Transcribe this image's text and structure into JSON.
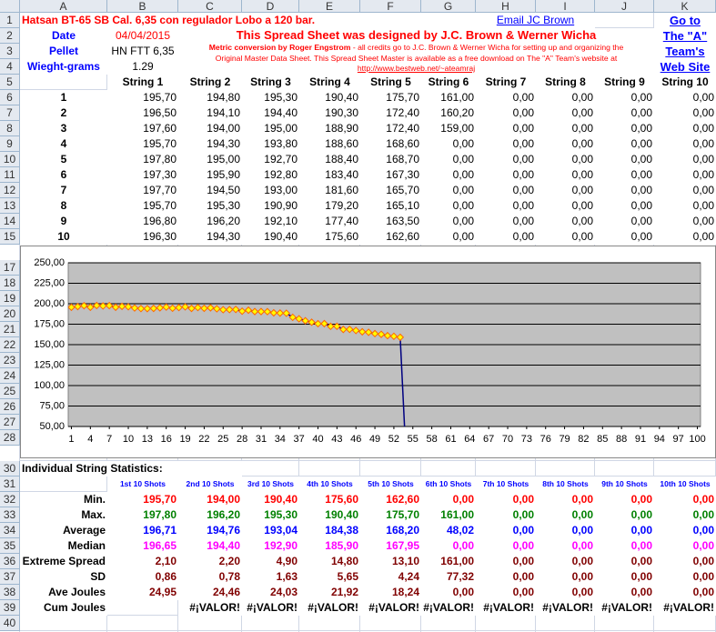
{
  "sheet": {
    "column_headers": [
      "A",
      "B",
      "C",
      "D",
      "E",
      "F",
      "G",
      "H",
      "I",
      "J",
      "K"
    ],
    "row_headers": [
      "1",
      "2",
      "3",
      "4",
      "5",
      "6",
      "7",
      "8",
      "9",
      "10",
      "11",
      "12",
      "13",
      "14",
      "15",
      "17",
      "18",
      "19",
      "20",
      "21",
      "22",
      "23",
      "24",
      "25",
      "26",
      "27",
      "28",
      "30",
      "31",
      "32",
      "33",
      "34",
      "35",
      "36",
      "37",
      "38",
      "39",
      "40"
    ],
    "title": "Hatsan BT-65 SB Cal. 6,35 con regulador Lobo a 120 bar.",
    "email_link": "Email JC Brown",
    "web_link": [
      "Go to",
      "The \"A\"",
      "Team's",
      "Web Site"
    ],
    "info": {
      "labels": [
        "Date",
        "Pellet",
        "Wieght-grams"
      ],
      "values": [
        "04/04/2015",
        "HN FTT 6,35",
        "1.29"
      ]
    },
    "banner": "This Spread Sheet was designed by J.C. Brown & Werner Wicha",
    "credits": {
      "author": "Metric conversion by Roger Engstrom",
      "lines": [
        " - all credits go to J.C. Brown & Werner Wicha for setting up and organizing the",
        "Original Master Data Sheet.  This Spread Sheet Master is available as a free download on The \"A\" Team's website at",
        "http://www.bestweb.net/~ateamraj"
      ]
    },
    "strings": {
      "headers": [
        "String 1",
        "String 2",
        "String 3",
        "String 4",
        "String 5",
        "String 6",
        "String 7",
        "String 8",
        "String 9",
        "String 10"
      ],
      "shots": [
        "1",
        "2",
        "3",
        "4",
        "5",
        "6",
        "7",
        "8",
        "9",
        "10"
      ],
      "values": [
        [
          "195,70",
          "194,80",
          "195,30",
          "190,40",
          "175,70",
          "161,00",
          "0,00",
          "0,00",
          "0,00",
          "0,00"
        ],
        [
          "196,50",
          "194,10",
          "194,40",
          "190,30",
          "172,40",
          "160,20",
          "0,00",
          "0,00",
          "0,00",
          "0,00"
        ],
        [
          "197,60",
          "194,00",
          "195,00",
          "188,90",
          "172,40",
          "159,00",
          "0,00",
          "0,00",
          "0,00",
          "0,00"
        ],
        [
          "195,70",
          "194,30",
          "193,80",
          "188,60",
          "168,60",
          "0,00",
          "0,00",
          "0,00",
          "0,00",
          "0,00"
        ],
        [
          "197,80",
          "195,00",
          "192,70",
          "188,40",
          "168,70",
          "0,00",
          "0,00",
          "0,00",
          "0,00",
          "0,00"
        ],
        [
          "197,30",
          "195,90",
          "192,80",
          "183,40",
          "167,30",
          "0,00",
          "0,00",
          "0,00",
          "0,00",
          "0,00"
        ],
        [
          "197,70",
          "194,50",
          "193,00",
          "181,60",
          "165,70",
          "0,00",
          "0,00",
          "0,00",
          "0,00",
          "0,00"
        ],
        [
          "195,70",
          "195,30",
          "190,90",
          "179,20",
          "165,10",
          "0,00",
          "0,00",
          "0,00",
          "0,00",
          "0,00"
        ],
        [
          "196,80",
          "196,20",
          "192,10",
          "177,40",
          "163,50",
          "0,00",
          "0,00",
          "0,00",
          "0,00",
          "0,00"
        ],
        [
          "196,30",
          "194,30",
          "190,40",
          "175,60",
          "162,60",
          "0,00",
          "0,00",
          "0,00",
          "0,00",
          "0,00"
        ]
      ]
    },
    "stats": {
      "title": "Individual String Statistics:",
      "headers": [
        "1st 10 Shots",
        "2nd 10 Shots",
        "3rd 10 Shots",
        "4th 10 Shots",
        "5th 10 Shots",
        "6th 10 Shots",
        "7th 10 Shots",
        "8th 10 Shots",
        "9th 10 Shots",
        "10th 10 Shots"
      ],
      "rows": [
        {
          "label": "Min.",
          "color": "#ff0000",
          "values": [
            "195,70",
            "194,00",
            "190,40",
            "175,60",
            "162,60",
            "0,00",
            "0,00",
            "0,00",
            "0,00",
            "0,00"
          ]
        },
        {
          "label": "Max.",
          "color": "#008000",
          "values": [
            "197,80",
            "196,20",
            "195,30",
            "190,40",
            "175,70",
            "161,00",
            "0,00",
            "0,00",
            "0,00",
            "0,00"
          ]
        },
        {
          "label": "Average",
          "color": "#0000ff",
          "values": [
            "196,71",
            "194,76",
            "193,04",
            "184,38",
            "168,20",
            "48,02",
            "0,00",
            "0,00",
            "0,00",
            "0,00"
          ]
        },
        {
          "label": "Median",
          "color": "#ff00ff",
          "values": [
            "196,65",
            "194,40",
            "192,90",
            "185,90",
            "167,95",
            "0,00",
            "0,00",
            "0,00",
            "0,00",
            "0,00"
          ]
        },
        {
          "label": "Extreme Spread",
          "color": "#800000",
          "values": [
            "2,10",
            "2,20",
            "4,90",
            "14,80",
            "13,10",
            "161,00",
            "0,00",
            "0,00",
            "0,00",
            "0,00"
          ]
        },
        {
          "label": "SD",
          "color": "#800000",
          "values": [
            "0,86",
            "0,78",
            "1,63",
            "5,65",
            "4,24",
            "77,32",
            "0,00",
            "0,00",
            "0,00",
            "0,00"
          ]
        },
        {
          "label": "Ave Joules",
          "color": "#800000",
          "values": [
            "24,95",
            "24,46",
            "24,03",
            "21,92",
            "18,24",
            "0,00",
            "0,00",
            "0,00",
            "0,00",
            "0,00"
          ]
        },
        {
          "label": "Cum Joules",
          "color": "#000000",
          "values": [
            null,
            "#¡VALOR!",
            "#¡VALOR!",
            "#¡VALOR!",
            "#¡VALOR!",
            "#¡VALOR!",
            "#¡VALOR!",
            "#¡VALOR!",
            "#¡VALOR!",
            "#¡VALOR!"
          ]
        }
      ]
    }
  },
  "chart_data": {
    "type": "line",
    "x": [
      1,
      2,
      3,
      4,
      5,
      6,
      7,
      8,
      9,
      10,
      11,
      12,
      13,
      14,
      15,
      16,
      17,
      18,
      19,
      20,
      21,
      22,
      23,
      24,
      25,
      26,
      27,
      28,
      29,
      30,
      31,
      32,
      33,
      34,
      35,
      36,
      37,
      38,
      39,
      40,
      41,
      42,
      43,
      44,
      45,
      46,
      47,
      48,
      49,
      50,
      51,
      52,
      53,
      54
    ],
    "series": [
      {
        "color": "#000080",
        "marker_fill": "#ffff00",
        "marker_stroke": "#ff6600",
        "values": [
          195.7,
          196.5,
          197.6,
          195.7,
          197.8,
          197.3,
          197.7,
          195.7,
          196.8,
          196.3,
          194.8,
          194.1,
          194.0,
          194.3,
          195.0,
          195.9,
          194.5,
          195.3,
          196.2,
          194.3,
          195.3,
          194.4,
          195.0,
          193.8,
          192.7,
          192.8,
          193.0,
          190.9,
          192.1,
          190.4,
          190.4,
          190.3,
          188.9,
          188.6,
          188.4,
          183.4,
          181.6,
          179.2,
          177.4,
          175.6,
          175.7,
          172.4,
          172.4,
          168.6,
          168.7,
          167.3,
          165.7,
          165.1,
          163.5,
          162.6,
          161.0,
          160.2,
          159.0,
          0
        ]
      }
    ],
    "xlim": [
      0.5,
      100.5
    ],
    "xticks": [
      1,
      4,
      7,
      10,
      13,
      16,
      19,
      22,
      25,
      28,
      31,
      34,
      37,
      40,
      43,
      46,
      49,
      52,
      55,
      58,
      61,
      64,
      67,
      70,
      73,
      76,
      79,
      82,
      85,
      88,
      91,
      94,
      97,
      100
    ],
    "ylim": [
      50,
      250
    ],
    "yticks": [
      {
        "value": 50,
        "label": "50,00"
      },
      {
        "value": 75,
        "label": "75,00"
      },
      {
        "value": 100,
        "label": "100,00"
      },
      {
        "value": 125,
        "label": "125,00"
      },
      {
        "value": 150,
        "label": "150,00"
      },
      {
        "value": 175,
        "label": "175,00"
      },
      {
        "value": 200,
        "label": "200,00"
      },
      {
        "value": 225,
        "label": "225,00"
      },
      {
        "value": 250,
        "label": "250,00"
      }
    ],
    "grid": true,
    "plot_background": "#c0c0c0"
  }
}
